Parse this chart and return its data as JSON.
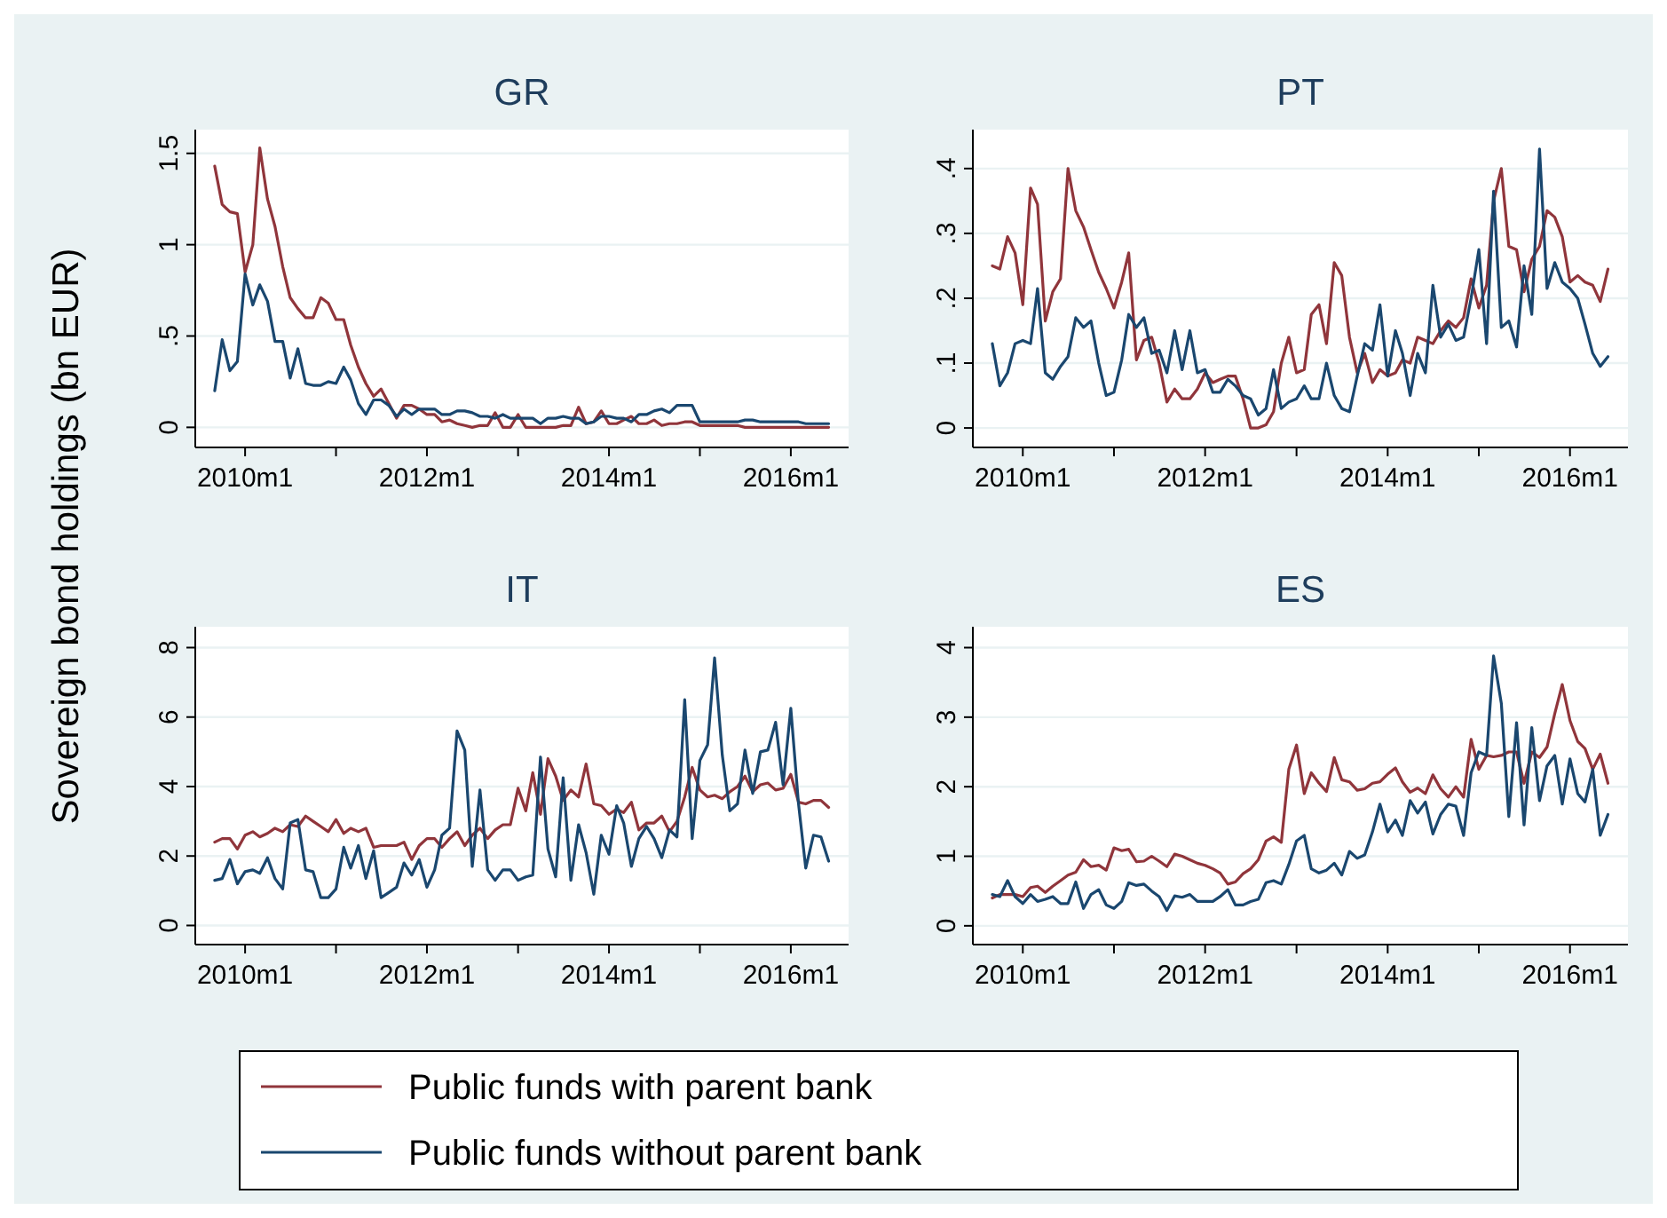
{
  "chart_data": [
    {
      "type": "line",
      "title": "GR",
      "ylabel": "Sovereign bond holdings (bn EUR)",
      "legend": "bottom",
      "grid": "y",
      "xlim": [
        "2009-06-15",
        "2016-08-20"
      ],
      "ylim": [
        -0.11,
        1.63
      ],
      "xticks": [
        {
          "value": "2010-01",
          "label": "2010m1"
        },
        {
          "value": "2011-01",
          "label": null
        },
        {
          "value": "2012-01",
          "label": "2012m1"
        },
        {
          "value": "2013-01",
          "label": null
        },
        {
          "value": "2014-01",
          "label": "2014m1"
        },
        {
          "value": "2015-01",
          "label": null
        },
        {
          "value": "2016-01",
          "label": "2016m1"
        }
      ],
      "yticks": [
        0,
        {
          "value": 0.5,
          "label": ".5"
        },
        1,
        1.5
      ],
      "x": [
        "2009-09",
        "2009-10",
        "2009-11",
        "2009-12",
        "2010-01",
        "2010-02",
        "2010-03",
        "2010-04",
        "2010-05",
        "2010-06",
        "2010-07",
        "2010-08",
        "2010-09",
        "2010-10",
        "2010-11",
        "2010-12",
        "2011-01",
        "2011-02",
        "2011-03",
        "2011-04",
        "2011-05",
        "2011-06",
        "2011-07",
        "2011-08",
        "2011-09",
        "2011-10",
        "2011-11",
        "2011-12",
        "2012-01",
        "2012-02",
        "2012-03",
        "2012-04",
        "2012-05",
        "2012-06",
        "2012-07",
        "2012-08",
        "2012-09",
        "2012-10",
        "2012-11",
        "2012-12",
        "2013-01",
        "2013-02",
        "2013-03",
        "2013-04",
        "2013-05",
        "2013-06",
        "2013-07",
        "2013-08",
        "2013-09",
        "2013-10",
        "2013-11",
        "2013-12",
        "2014-01",
        "2014-02",
        "2014-03",
        "2014-04",
        "2014-05",
        "2014-06",
        "2014-07",
        "2014-08",
        "2014-09",
        "2014-10",
        "2014-11",
        "2014-12",
        "2015-01",
        "2015-02",
        "2015-03",
        "2015-04",
        "2015-05",
        "2015-06",
        "2015-07",
        "2015-08",
        "2015-09",
        "2015-10",
        "2015-11",
        "2015-12",
        "2016-01",
        "2016-02",
        "2016-03",
        "2016-04",
        "2016-05",
        "2016-06"
      ],
      "series": [
        {
          "name": "Public funds with parent bank",
          "color": "#90353b",
          "values": [
            1.43,
            1.22,
            1.18,
            1.17,
            0.85,
            1.0,
            1.53,
            1.25,
            1.1,
            0.88,
            0.71,
            0.65,
            0.6,
            0.6,
            0.71,
            0.68,
            0.59,
            0.59,
            0.45,
            0.33,
            0.24,
            0.17,
            0.21,
            0.13,
            0.05,
            0.12,
            0.12,
            0.1,
            0.07,
            0.07,
            0.03,
            0.04,
            0.02,
            0.01,
            0.0,
            0.01,
            0.01,
            0.08,
            0.0,
            0.0,
            0.07,
            0.0,
            0.0,
            0.0,
            0.0,
            0.0,
            0.01,
            0.01,
            0.11,
            0.02,
            0.03,
            0.09,
            0.02,
            0.02,
            0.04,
            0.06,
            0.02,
            0.02,
            0.04,
            0.01,
            0.02,
            0.02,
            0.03,
            0.03,
            0.01,
            0.01,
            0.01,
            0.01,
            0.01,
            0.01,
            0.0,
            0.0,
            0.0,
            0.0,
            0.0,
            0.0,
            0.0,
            0.0,
            0.0,
            0.0,
            0.0,
            0.0
          ]
        },
        {
          "name": "Public funds without parent bank",
          "color": "#1a476f",
          "values": [
            0.2,
            0.48,
            0.31,
            0.36,
            0.84,
            0.67,
            0.78,
            0.69,
            0.47,
            0.47,
            0.27,
            0.43,
            0.24,
            0.23,
            0.23,
            0.25,
            0.24,
            0.33,
            0.26,
            0.13,
            0.07,
            0.15,
            0.15,
            0.12,
            0.06,
            0.1,
            0.07,
            0.1,
            0.1,
            0.1,
            0.07,
            0.07,
            0.09,
            0.09,
            0.08,
            0.06,
            0.06,
            0.05,
            0.07,
            0.05,
            0.05,
            0.05,
            0.05,
            0.02,
            0.05,
            0.05,
            0.06,
            0.05,
            0.05,
            0.02,
            0.03,
            0.06,
            0.06,
            0.05,
            0.05,
            0.03,
            0.07,
            0.07,
            0.09,
            0.1,
            0.08,
            0.12,
            0.12,
            0.12,
            0.03,
            0.03,
            0.03,
            0.03,
            0.03,
            0.03,
            0.04,
            0.04,
            0.03,
            0.03,
            0.03,
            0.03,
            0.03,
            0.03,
            0.02,
            0.02,
            0.02,
            0.02
          ]
        }
      ]
    },
    {
      "type": "line",
      "title": "PT",
      "grid": "y",
      "xlim": [
        "2009-06-15",
        "2016-08-20"
      ],
      "ylim": [
        -0.03,
        0.46
      ],
      "xticks": [
        {
          "value": "2010-01",
          "label": "2010m1"
        },
        {
          "value": "2011-01",
          "label": null
        },
        {
          "value": "2012-01",
          "label": "2012m1"
        },
        {
          "value": "2013-01",
          "label": null
        },
        {
          "value": "2014-01",
          "label": "2014m1"
        },
        {
          "value": "2015-01",
          "label": null
        },
        {
          "value": "2016-01",
          "label": "2016m1"
        }
      ],
      "yticks": [
        0,
        {
          "value": 0.1,
          "label": ".1"
        },
        {
          "value": 0.2,
          "label": ".2"
        },
        {
          "value": 0.3,
          "label": ".3"
        },
        {
          "value": 0.4,
          "label": ".4"
        }
      ],
      "x": [
        "2009-09",
        "2009-10",
        "2009-11",
        "2009-12",
        "2010-01",
        "2010-02",
        "2010-03",
        "2010-04",
        "2010-05",
        "2010-06",
        "2010-07",
        "2010-08",
        "2010-09",
        "2010-10",
        "2010-11",
        "2010-12",
        "2011-01",
        "2011-02",
        "2011-03",
        "2011-04",
        "2011-05",
        "2011-06",
        "2011-07",
        "2011-08",
        "2011-09",
        "2011-10",
        "2011-11",
        "2011-12",
        "2012-01",
        "2012-02",
        "2012-03",
        "2012-04",
        "2012-05",
        "2012-06",
        "2012-07",
        "2012-08",
        "2012-09",
        "2012-10",
        "2012-11",
        "2012-12",
        "2013-01",
        "2013-02",
        "2013-03",
        "2013-04",
        "2013-05",
        "2013-06",
        "2013-07",
        "2013-08",
        "2013-09",
        "2013-10",
        "2013-11",
        "2013-12",
        "2014-01",
        "2014-02",
        "2014-03",
        "2014-04",
        "2014-05",
        "2014-06",
        "2014-07",
        "2014-08",
        "2014-09",
        "2014-10",
        "2014-11",
        "2014-12",
        "2015-01",
        "2015-02",
        "2015-03",
        "2015-04",
        "2015-05",
        "2015-06",
        "2015-07",
        "2015-08",
        "2015-09",
        "2015-10",
        "2015-11",
        "2015-12",
        "2016-01",
        "2016-02",
        "2016-03",
        "2016-04",
        "2016-05",
        "2016-06"
      ],
      "series": [
        {
          "color": "#90353b",
          "values": [
            0.25,
            0.245,
            0.295,
            0.27,
            0.19,
            0.37,
            0.345,
            0.165,
            0.21,
            0.23,
            0.4,
            0.335,
            0.31,
            0.275,
            0.24,
            0.215,
            0.185,
            0.225,
            0.27,
            0.105,
            0.135,
            0.14,
            0.1,
            0.04,
            0.06,
            0.045,
            0.045,
            0.06,
            0.085,
            0.07,
            0.075,
            0.08,
            0.08,
            0.045,
            0.0,
            0.0,
            0.005,
            0.025,
            0.1,
            0.14,
            0.085,
            0.09,
            0.175,
            0.19,
            0.13,
            0.255,
            0.235,
            0.14,
            0.085,
            0.115,
            0.07,
            0.09,
            0.08,
            0.085,
            0.105,
            0.1,
            0.14,
            0.135,
            0.13,
            0.15,
            0.165,
            0.155,
            0.17,
            0.23,
            0.185,
            0.22,
            0.35,
            0.4,
            0.28,
            0.275,
            0.21,
            0.26,
            0.28,
            0.335,
            0.325,
            0.295,
            0.225,
            0.235,
            0.225,
            0.22,
            0.195,
            0.245
          ]
        },
        {
          "color": "#1a476f",
          "values": [
            0.13,
            0.065,
            0.085,
            0.13,
            0.135,
            0.13,
            0.215,
            0.085,
            0.075,
            0.095,
            0.11,
            0.17,
            0.155,
            0.165,
            0.1,
            0.05,
            0.055,
            0.105,
            0.175,
            0.155,
            0.17,
            0.115,
            0.12,
            0.085,
            0.15,
            0.09,
            0.15,
            0.085,
            0.09,
            0.055,
            0.055,
            0.075,
            0.065,
            0.05,
            0.045,
            0.02,
            0.03,
            0.09,
            0.03,
            0.04,
            0.045,
            0.065,
            0.045,
            0.045,
            0.1,
            0.05,
            0.03,
            0.025,
            0.08,
            0.13,
            0.12,
            0.19,
            0.08,
            0.15,
            0.115,
            0.05,
            0.115,
            0.085,
            0.22,
            0.14,
            0.16,
            0.135,
            0.14,
            0.2,
            0.275,
            0.13,
            0.365,
            0.155,
            0.165,
            0.125,
            0.25,
            0.175,
            0.43,
            0.215,
            0.255,
            0.225,
            0.215,
            0.2,
            0.16,
            0.115,
            0.095,
            0.11
          ]
        }
      ]
    },
    {
      "type": "line",
      "title": "IT",
      "grid": "y",
      "xlim": [
        "2009-06-15",
        "2016-08-20"
      ],
      "ylim": [
        -0.55,
        8.6
      ],
      "xticks": [
        {
          "value": "2010-01",
          "label": "2010m1"
        },
        {
          "value": "2011-01",
          "label": null
        },
        {
          "value": "2012-01",
          "label": "2012m1"
        },
        {
          "value": "2013-01",
          "label": null
        },
        {
          "value": "2014-01",
          "label": "2014m1"
        },
        {
          "value": "2015-01",
          "label": null
        },
        {
          "value": "2016-01",
          "label": "2016m1"
        }
      ],
      "yticks": [
        0,
        2,
        4,
        6,
        8
      ],
      "x": [
        "2009-09",
        "2009-10",
        "2009-11",
        "2009-12",
        "2010-01",
        "2010-02",
        "2010-03",
        "2010-04",
        "2010-05",
        "2010-06",
        "2010-07",
        "2010-08",
        "2010-09",
        "2010-10",
        "2010-11",
        "2010-12",
        "2011-01",
        "2011-02",
        "2011-03",
        "2011-04",
        "2011-05",
        "2011-06",
        "2011-07",
        "2011-08",
        "2011-09",
        "2011-10",
        "2011-11",
        "2011-12",
        "2012-01",
        "2012-02",
        "2012-03",
        "2012-04",
        "2012-05",
        "2012-06",
        "2012-07",
        "2012-08",
        "2012-09",
        "2012-10",
        "2012-11",
        "2012-12",
        "2013-01",
        "2013-02",
        "2013-03",
        "2013-04",
        "2013-05",
        "2013-06",
        "2013-07",
        "2013-08",
        "2013-09",
        "2013-10",
        "2013-11",
        "2013-12",
        "2014-01",
        "2014-02",
        "2014-03",
        "2014-04",
        "2014-05",
        "2014-06",
        "2014-07",
        "2014-08",
        "2014-09",
        "2014-10",
        "2014-11",
        "2014-12",
        "2015-01",
        "2015-02",
        "2015-03",
        "2015-04",
        "2015-05",
        "2015-06",
        "2015-07",
        "2015-08",
        "2015-09",
        "2015-10",
        "2015-11",
        "2015-12",
        "2016-01",
        "2016-02",
        "2016-03",
        "2016-04",
        "2016-05",
        "2016-06"
      ],
      "series": [
        {
          "color": "#90353b",
          "values": [
            2.4,
            2.5,
            2.5,
            2.2,
            2.6,
            2.7,
            2.55,
            2.65,
            2.8,
            2.7,
            2.9,
            2.85,
            3.15,
            3.0,
            2.85,
            2.7,
            3.05,
            2.65,
            2.8,
            2.7,
            2.8,
            2.25,
            2.3,
            2.3,
            2.3,
            2.4,
            1.9,
            2.3,
            2.5,
            2.5,
            2.25,
            2.5,
            2.7,
            2.3,
            2.6,
            2.8,
            2.5,
            2.75,
            2.9,
            2.9,
            3.95,
            3.3,
            4.4,
            3.2,
            4.8,
            4.3,
            3.6,
            3.9,
            3.7,
            4.65,
            3.5,
            3.45,
            3.2,
            3.35,
            3.25,
            3.55,
            2.75,
            2.95,
            2.95,
            3.15,
            2.7,
            3.0,
            3.7,
            4.55,
            3.9,
            3.7,
            3.75,
            3.65,
            3.85,
            4.0,
            4.3,
            3.85,
            4.05,
            4.1,
            3.9,
            3.95,
            4.35,
            3.55,
            3.5,
            3.6,
            3.6,
            3.4
          ]
        },
        {
          "color": "#1a476f",
          "values": [
            1.3,
            1.35,
            1.9,
            1.2,
            1.55,
            1.6,
            1.5,
            1.95,
            1.35,
            1.05,
            2.95,
            3.05,
            1.6,
            1.55,
            0.8,
            0.8,
            1.05,
            2.25,
            1.65,
            2.3,
            1.35,
            2.15,
            0.8,
            0.95,
            1.1,
            1.8,
            1.45,
            1.9,
            1.1,
            1.6,
            2.6,
            2.8,
            5.6,
            5.05,
            1.7,
            3.9,
            1.6,
            1.3,
            1.6,
            1.6,
            1.3,
            1.4,
            1.45,
            4.85,
            2.2,
            1.4,
            4.25,
            1.3,
            2.9,
            2.1,
            0.9,
            2.6,
            2.05,
            3.45,
            2.95,
            1.7,
            2.5,
            2.85,
            2.5,
            1.95,
            2.75,
            2.55,
            6.5,
            2.5,
            4.75,
            5.2,
            7.7,
            4.9,
            3.3,
            3.5,
            5.05,
            3.8,
            5.0,
            5.05,
            5.85,
            4.05,
            6.25,
            3.5,
            1.65,
            2.6,
            2.55,
            1.85
          ]
        }
      ]
    },
    {
      "type": "line",
      "title": "ES",
      "grid": "y",
      "xlim": [
        "2009-06-15",
        "2016-08-20"
      ],
      "ylim": [
        -0.27,
        4.3
      ],
      "xticks": [
        {
          "value": "2010-01",
          "label": "2010m1"
        },
        {
          "value": "2011-01",
          "label": null
        },
        {
          "value": "2012-01",
          "label": "2012m1"
        },
        {
          "value": "2013-01",
          "label": null
        },
        {
          "value": "2014-01",
          "label": "2014m1"
        },
        {
          "value": "2015-01",
          "label": null
        },
        {
          "value": "2016-01",
          "label": "2016m1"
        }
      ],
      "yticks": [
        0,
        1,
        2,
        3,
        4
      ],
      "x": [
        "2009-09",
        "2009-10",
        "2009-11",
        "2009-12",
        "2010-01",
        "2010-02",
        "2010-03",
        "2010-04",
        "2010-05",
        "2010-06",
        "2010-07",
        "2010-08",
        "2010-09",
        "2010-10",
        "2010-11",
        "2010-12",
        "2011-01",
        "2011-02",
        "2011-03",
        "2011-04",
        "2011-05",
        "2011-06",
        "2011-07",
        "2011-08",
        "2011-09",
        "2011-10",
        "2011-11",
        "2011-12",
        "2012-01",
        "2012-02",
        "2012-03",
        "2012-04",
        "2012-05",
        "2012-06",
        "2012-07",
        "2012-08",
        "2012-09",
        "2012-10",
        "2012-11",
        "2012-12",
        "2013-01",
        "2013-02",
        "2013-03",
        "2013-04",
        "2013-05",
        "2013-06",
        "2013-07",
        "2013-08",
        "2013-09",
        "2013-10",
        "2013-11",
        "2013-12",
        "2014-01",
        "2014-02",
        "2014-03",
        "2014-04",
        "2014-05",
        "2014-06",
        "2014-07",
        "2014-08",
        "2014-09",
        "2014-10",
        "2014-11",
        "2014-12",
        "2015-01",
        "2015-02",
        "2015-03",
        "2015-04",
        "2015-05",
        "2015-06",
        "2015-07",
        "2015-08",
        "2015-09",
        "2015-10",
        "2015-11",
        "2015-12",
        "2016-01",
        "2016-02",
        "2016-03",
        "2016-04",
        "2016-05",
        "2016-06"
      ],
      "series": [
        {
          "color": "#90353b",
          "values": [
            0.4,
            0.45,
            0.45,
            0.45,
            0.42,
            0.55,
            0.57,
            0.48,
            0.57,
            0.65,
            0.73,
            0.77,
            0.95,
            0.85,
            0.87,
            0.8,
            1.12,
            1.08,
            1.1,
            0.92,
            0.93,
            1.0,
            0.93,
            0.85,
            1.03,
            1.0,
            0.95,
            0.9,
            0.87,
            0.82,
            0.76,
            0.6,
            0.63,
            0.75,
            0.82,
            0.95,
            1.22,
            1.28,
            1.2,
            2.25,
            2.6,
            1.9,
            2.2,
            2.05,
            1.93,
            2.42,
            2.1,
            2.07,
            1.95,
            1.97,
            2.05,
            2.07,
            2.18,
            2.27,
            2.07,
            1.92,
            1.98,
            1.9,
            2.17,
            1.97,
            1.85,
            2.0,
            1.85,
            2.68,
            2.25,
            2.45,
            2.43,
            2.45,
            2.5,
            2.5,
            2.05,
            2.5,
            2.42,
            2.57,
            3.05,
            3.47,
            2.95,
            2.65,
            2.55,
            2.25,
            2.47,
            2.05
          ]
        },
        {
          "color": "#1a476f",
          "values": [
            0.45,
            0.42,
            0.65,
            0.42,
            0.32,
            0.45,
            0.35,
            0.38,
            0.42,
            0.32,
            0.32,
            0.63,
            0.25,
            0.45,
            0.52,
            0.3,
            0.25,
            0.35,
            0.62,
            0.58,
            0.6,
            0.5,
            0.42,
            0.22,
            0.43,
            0.41,
            0.45,
            0.35,
            0.35,
            0.35,
            0.42,
            0.52,
            0.3,
            0.3,
            0.35,
            0.38,
            0.62,
            0.65,
            0.6,
            0.88,
            1.22,
            1.3,
            0.82,
            0.76,
            0.8,
            0.9,
            0.73,
            1.07,
            0.97,
            1.02,
            1.35,
            1.75,
            1.35,
            1.52,
            1.3,
            1.8,
            1.62,
            1.78,
            1.32,
            1.6,
            1.75,
            1.72,
            1.3,
            2.2,
            2.5,
            2.45,
            3.88,
            3.2,
            1.57,
            2.92,
            1.45,
            2.85,
            1.8,
            2.3,
            2.45,
            1.75,
            2.4,
            1.9,
            1.78,
            2.25,
            1.3,
            1.6
          ]
        }
      ]
    }
  ]
}
